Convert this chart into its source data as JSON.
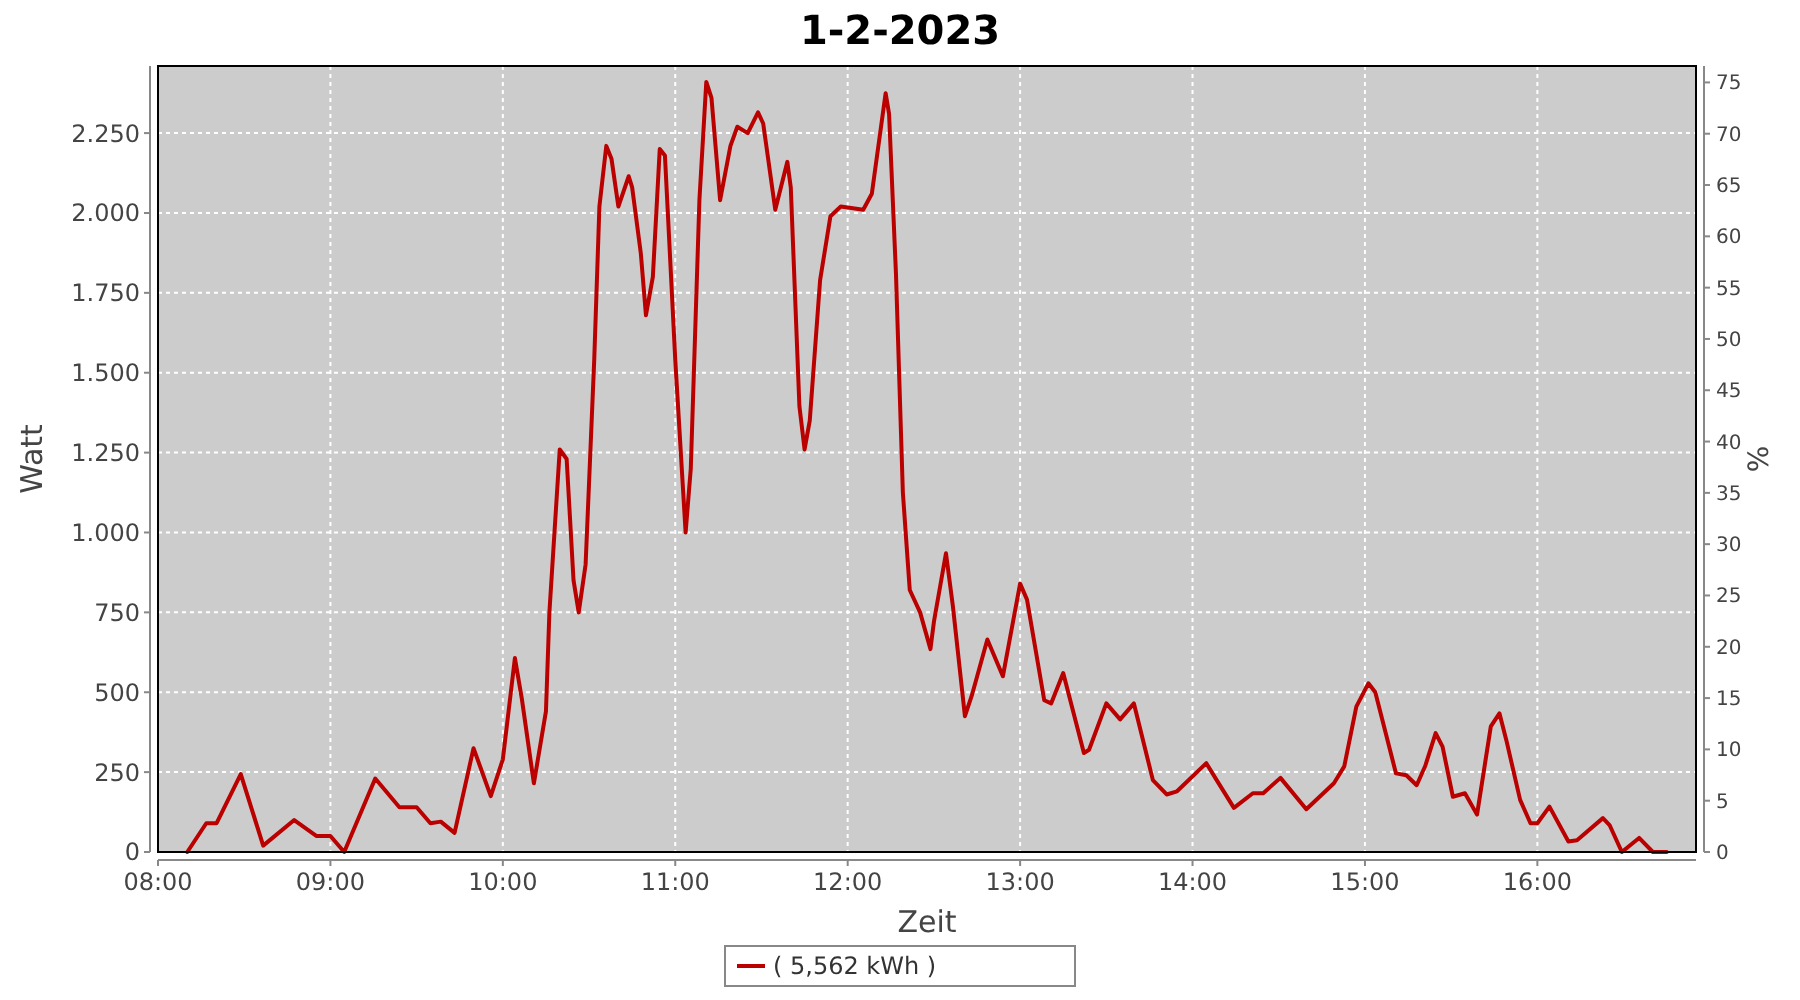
{
  "chart_data": {
    "type": "line",
    "title": "1-2-2023",
    "xlabel": "Zeit",
    "ylabel": "Watt",
    "y2label": "%",
    "xlim": [
      8,
      16.92
    ],
    "xticks": [
      {
        "value": 8,
        "label": "08:00"
      },
      {
        "value": 9,
        "label": "09:00"
      },
      {
        "value": 10,
        "label": "10:00"
      },
      {
        "value": 11,
        "label": "11:00"
      },
      {
        "value": 12,
        "label": "12:00"
      },
      {
        "value": 13,
        "label": "13:00"
      },
      {
        "value": 14,
        "label": "14:00"
      },
      {
        "value": 15,
        "label": "15:00"
      },
      {
        "value": 16,
        "label": "16:00"
      }
    ],
    "ylim": [
      0,
      2460
    ],
    "yticks": [
      0,
      250,
      500,
      750,
      {
        "value": 1000,
        "label": "1.000"
      },
      {
        "value": 1250,
        "label": "1.250"
      },
      {
        "value": 1500,
        "label": "1.500"
      },
      {
        "value": 1750,
        "label": "1.750"
      },
      {
        "value": 2000,
        "label": "2.000"
      },
      {
        "value": 2250,
        "label": "2.250"
      }
    ],
    "y2lim": [
      0,
      76.6
    ],
    "y2ticks": [
      0,
      5,
      10,
      15,
      20,
      25,
      30,
      35,
      40,
      45,
      50,
      55,
      60,
      65,
      70,
      75
    ],
    "grid": true,
    "legend": "bottom",
    "marker": "none",
    "line_style": "solid",
    "series": [
      {
        "name": "( 5,562 kWh )",
        "color": "#bb0000",
        "x": [
          8.17,
          8.28,
          8.34,
          8.48,
          8.61,
          8.79,
          8.92,
          9.0,
          9.08,
          9.26,
          9.4,
          9.5,
          9.58,
          9.64,
          9.72,
          9.83,
          9.93,
          10.0,
          10.07,
          10.11,
          10.18,
          10.25,
          10.27,
          10.33,
          10.37,
          10.41,
          10.44,
          10.48,
          10.53,
          10.56,
          10.6,
          10.63,
          10.67,
          10.73,
          10.75,
          10.8,
          10.83,
          10.87,
          10.91,
          10.94,
          11.0,
          11.06,
          11.09,
          11.14,
          11.18,
          11.21,
          11.26,
          11.32,
          11.36,
          11.42,
          11.48,
          11.51,
          11.58,
          11.65,
          11.67,
          11.72,
          11.75,
          11.78,
          11.84,
          11.9,
          11.96,
          12.09,
          12.14,
          12.22,
          12.24,
          12.28,
          12.32,
          12.36,
          12.42,
          12.48,
          12.5,
          12.57,
          12.61,
          12.68,
          12.72,
          12.81,
          12.9,
          13.0,
          13.04,
          13.14,
          13.18,
          13.25,
          13.37,
          13.4,
          13.5,
          13.58,
          13.66,
          13.77,
          13.85,
          13.91,
          14.08,
          14.14,
          14.24,
          14.35,
          14.41,
          14.51,
          14.66,
          14.82,
          14.88,
          14.95,
          15.02,
          15.06,
          15.18,
          15.24,
          15.3,
          15.35,
          15.41,
          15.45,
          15.51,
          15.58,
          15.65,
          15.73,
          15.78,
          15.82,
          15.9,
          15.96,
          16.0,
          16.07,
          16.18,
          16.23,
          16.38,
          16.42,
          16.49,
          16.59,
          16.67,
          16.75
        ],
        "values": [
          0,
          90,
          90,
          244,
          20,
          100,
          50,
          50,
          0,
          230,
          140,
          140,
          90,
          95,
          60,
          325,
          175,
          290,
          607,
          480,
          215,
          440,
          750,
          1260,
          1230,
          850,
          750,
          900,
          1540,
          2020,
          2210,
          2170,
          2020,
          2115,
          2080,
          1875,
          1680,
          1800,
          2200,
          2180,
          1540,
          1000,
          1200,
          2040,
          2410,
          2360,
          2040,
          2210,
          2270,
          2250,
          2315,
          2280,
          2010,
          2160,
          2080,
          1395,
          1260,
          1350,
          1790,
          1990,
          2020,
          2010,
          2060,
          2375,
          2310,
          1810,
          1125,
          820,
          750,
          635,
          720,
          935,
          770,
          425,
          490,
          665,
          550,
          840,
          790,
          475,
          465,
          560,
          310,
          320,
          465,
          415,
          465,
          225,
          180,
          190,
          278,
          225,
          138,
          184,
          184,
          232,
          134,
          215,
          268,
          455,
          528,
          500,
          246,
          240,
          209,
          270,
          372,
          330,
          173,
          184,
          117,
          393,
          434,
          350,
          163,
          90,
          90,
          142,
          33,
          37,
          106,
          83,
          0,
          44,
          0,
          0
        ]
      }
    ]
  }
}
